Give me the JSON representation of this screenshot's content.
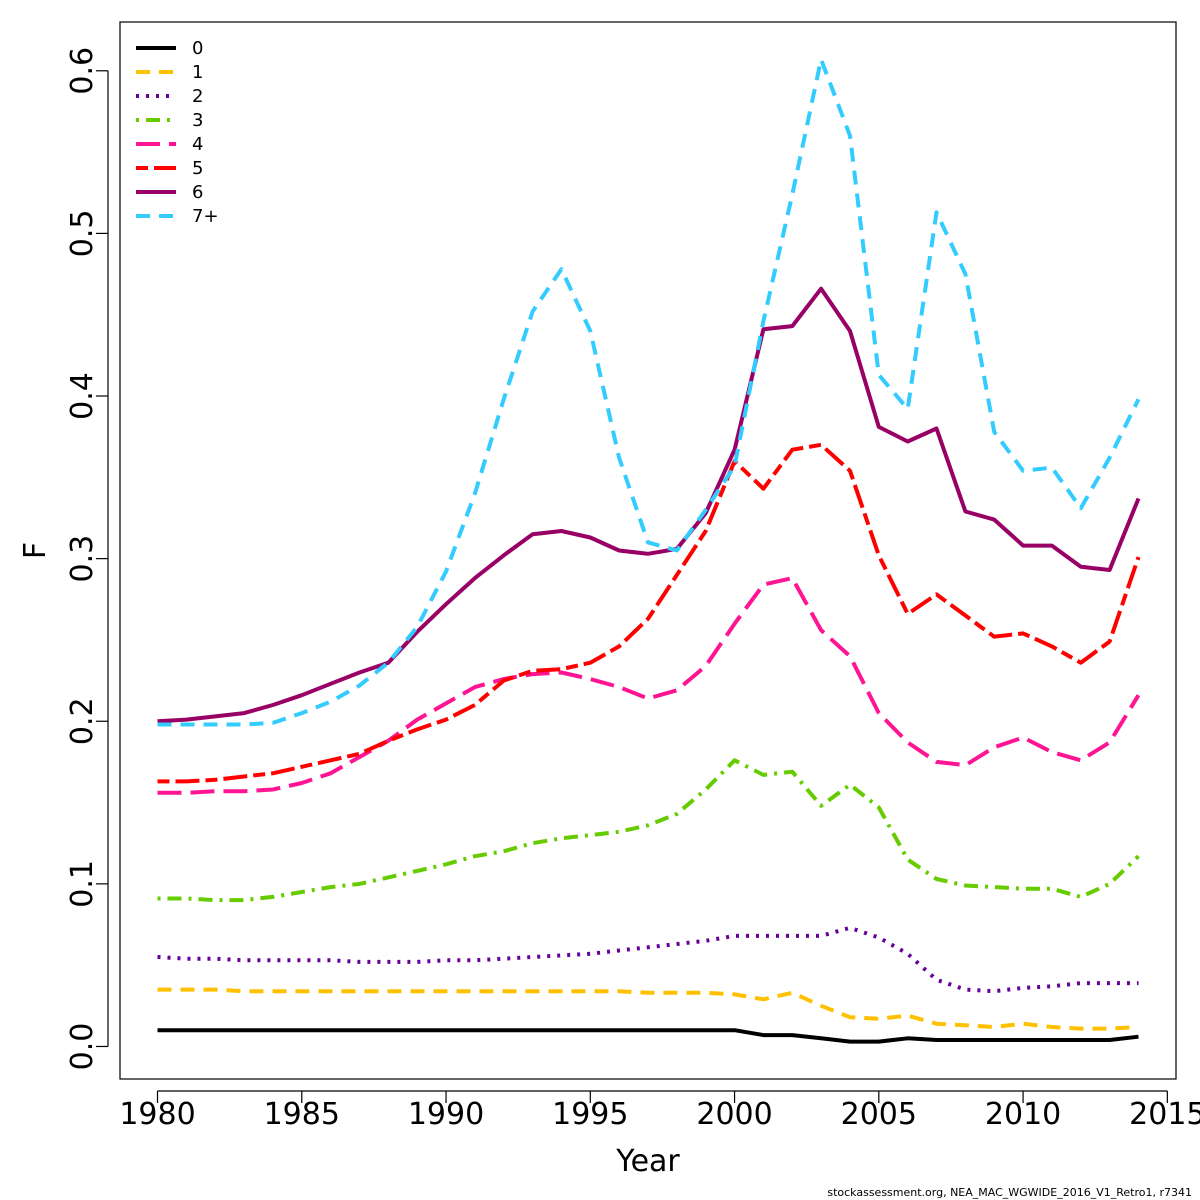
{
  "chart_data": {
    "type": "line",
    "xlabel": "Year",
    "ylabel": "F",
    "xlim": [
      1978.7,
      2015.3
    ],
    "ylim": [
      -0.02,
      0.63
    ],
    "xticks": [
      1980,
      1985,
      1990,
      1995,
      2000,
      2005,
      2010,
      2015
    ],
    "yticks": [
      0.0,
      0.1,
      0.2,
      0.3,
      0.4,
      0.5,
      0.6
    ],
    "xtick_labels": [
      "1980",
      "1985",
      "1990",
      "1995",
      "2000",
      "2005",
      "2010",
      "2015"
    ],
    "ytick_labels": [
      "0.0",
      "0.1",
      "0.2",
      "0.3",
      "0.4",
      "0.5",
      "0.6"
    ],
    "grid": false,
    "legend_position": "top-left",
    "x": [
      1980,
      1981,
      1982,
      1983,
      1984,
      1985,
      1986,
      1987,
      1988,
      1989,
      1990,
      1991,
      1992,
      1993,
      1994,
      1995,
      1996,
      1997,
      1998,
      1999,
      2000,
      2001,
      2002,
      2003,
      2004,
      2005,
      2006,
      2007,
      2008,
      2009,
      2010,
      2011,
      2012,
      2013,
      2014
    ],
    "series": [
      {
        "name": "0",
        "color": "#000000",
        "dash": "solid",
        "values": [
          0.01,
          0.01,
          0.01,
          0.01,
          0.01,
          0.01,
          0.01,
          0.01,
          0.01,
          0.01,
          0.01,
          0.01,
          0.01,
          0.01,
          0.01,
          0.01,
          0.01,
          0.01,
          0.01,
          0.01,
          0.01,
          0.007,
          0.007,
          0.005,
          0.003,
          0.003,
          0.005,
          0.004,
          0.004,
          0.004,
          0.004,
          0.004,
          0.004,
          0.004,
          0.006
        ]
      },
      {
        "name": "1",
        "color": "#FFC000",
        "dash": "dashed",
        "values": [
          0.035,
          0.035,
          0.035,
          0.034,
          0.034,
          0.034,
          0.034,
          0.034,
          0.034,
          0.034,
          0.034,
          0.034,
          0.034,
          0.034,
          0.034,
          0.034,
          0.034,
          0.033,
          0.033,
          0.033,
          0.032,
          0.029,
          0.033,
          0.025,
          0.018,
          0.017,
          0.019,
          0.014,
          0.013,
          0.012,
          0.014,
          0.012,
          0.011,
          0.011,
          0.012
        ]
      },
      {
        "name": "2",
        "color": "#660099",
        "dash": "dotted",
        "values": [
          0.055,
          0.054,
          0.054,
          0.053,
          0.053,
          0.053,
          0.053,
          0.052,
          0.052,
          0.052,
          0.053,
          0.053,
          0.054,
          0.055,
          0.056,
          0.057,
          0.059,
          0.061,
          0.063,
          0.065,
          0.068,
          0.068,
          0.068,
          0.068,
          0.073,
          0.067,
          0.057,
          0.041,
          0.035,
          0.034,
          0.036,
          0.037,
          0.039,
          0.039,
          0.039
        ]
      },
      {
        "name": "3",
        "color": "#66CC00",
        "dash": "dotdash",
        "values": [
          0.091,
          0.091,
          0.09,
          0.09,
          0.092,
          0.095,
          0.098,
          0.1,
          0.104,
          0.108,
          0.112,
          0.117,
          0.12,
          0.125,
          0.128,
          0.13,
          0.132,
          0.136,
          0.143,
          0.158,
          0.176,
          0.167,
          0.169,
          0.148,
          0.161,
          0.147,
          0.115,
          0.103,
          0.099,
          0.098,
          0.097,
          0.097,
          0.092,
          0.1,
          0.117
        ]
      },
      {
        "name": "4",
        "color": "#FF1493",
        "dash": "longdash",
        "values": [
          0.156,
          0.156,
          0.157,
          0.157,
          0.158,
          0.162,
          0.168,
          0.178,
          0.188,
          0.201,
          0.211,
          0.221,
          0.226,
          0.229,
          0.23,
          0.226,
          0.221,
          0.214,
          0.219,
          0.234,
          0.26,
          0.284,
          0.288,
          0.256,
          0.24,
          0.205,
          0.187,
          0.175,
          0.173,
          0.184,
          0.19,
          0.181,
          0.176,
          0.187,
          0.216
        ]
      },
      {
        "name": "5",
        "color": "#FF0000",
        "dash": "twodash",
        "values": [
          0.163,
          0.163,
          0.164,
          0.166,
          0.168,
          0.172,
          0.176,
          0.18,
          0.188,
          0.195,
          0.201,
          0.21,
          0.225,
          0.231,
          0.232,
          0.236,
          0.246,
          0.263,
          0.29,
          0.317,
          0.36,
          0.343,
          0.367,
          0.37,
          0.354,
          0.302,
          0.266,
          0.278,
          0.265,
          0.252,
          0.254,
          0.246,
          0.236,
          0.249,
          0.301
        ]
      },
      {
        "name": "6",
        "color": "#990066",
        "dash": "solid",
        "values": [
          0.2,
          0.201,
          0.203,
          0.205,
          0.21,
          0.216,
          0.223,
          0.23,
          0.236,
          0.255,
          0.272,
          0.288,
          0.302,
          0.315,
          0.317,
          0.313,
          0.305,
          0.303,
          0.306,
          0.328,
          0.367,
          0.441,
          0.443,
          0.466,
          0.44,
          0.381,
          0.372,
          0.38,
          0.329,
          0.324,
          0.308,
          0.308,
          0.295,
          0.293,
          0.337
        ]
      },
      {
        "name": "7+",
        "color": "#33CCFF",
        "dash": "dashed",
        "values": [
          0.198,
          0.198,
          0.198,
          0.198,
          0.199,
          0.205,
          0.212,
          0.222,
          0.236,
          0.258,
          0.292,
          0.34,
          0.398,
          0.452,
          0.478,
          0.44,
          0.362,
          0.31,
          0.305,
          0.33,
          0.357,
          0.446,
          0.524,
          0.607,
          0.56,
          0.413,
          0.392,
          0.513,
          0.475,
          0.378,
          0.354,
          0.356,
          0.331,
          0.362,
          0.398
        ]
      }
    ]
  },
  "footer": "stockassessment.org, NEA_MAC_WGWIDE_2016_V1_Retro1, r7341"
}
